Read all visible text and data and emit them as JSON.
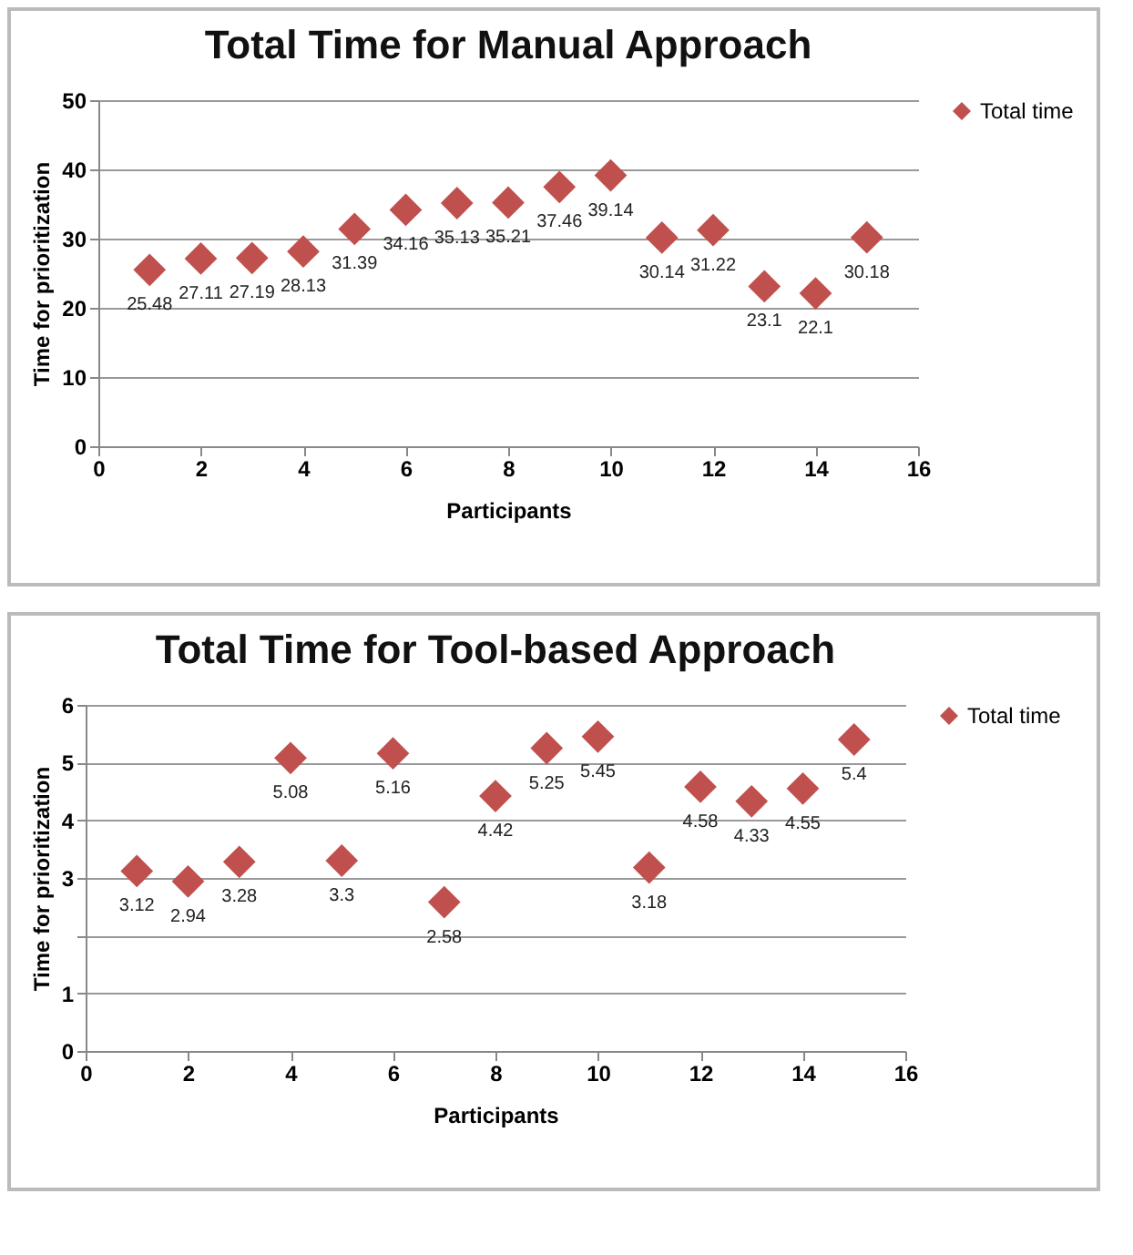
{
  "chart_data": [
    {
      "type": "scatter",
      "title": "Total Time for Manual Approach",
      "xlabel": "Participants",
      "ylabel": "Time for prioritization",
      "x": [
        1,
        2,
        3,
        4,
        5,
        6,
        7,
        8,
        9,
        10,
        11,
        12,
        13,
        14,
        15
      ],
      "series": [
        {
          "name": "Total time",
          "color": "#c0504d",
          "values": [
            25.48,
            27.11,
            27.19,
            28.13,
            31.39,
            34.16,
            35.13,
            35.21,
            37.46,
            39.14,
            30.14,
            31.22,
            23.1,
            22.1,
            30.18
          ]
        }
      ],
      "xlim": [
        0,
        16
      ],
      "xticks": [
        0,
        2,
        4,
        6,
        8,
        10,
        12,
        14,
        16
      ],
      "ylim": [
        0,
        50
      ],
      "yticks": [
        0,
        10,
        20,
        30,
        40,
        50
      ],
      "grid": "y",
      "legend": "right",
      "marker": "diamond",
      "data_labels": true
    },
    {
      "type": "scatter",
      "title": "Total Time for Tool-based Approach",
      "xlabel": "Participants",
      "ylabel": "Time for prioritization",
      "x": [
        1,
        2,
        3,
        4,
        5,
        6,
        7,
        8,
        9,
        10,
        11,
        12,
        13,
        14,
        15
      ],
      "series": [
        {
          "name": "Total time",
          "color": "#c0504d",
          "values": [
            3.12,
            2.94,
            3.28,
            5.08,
            3.3,
            5.16,
            2.58,
            4.42,
            5.25,
            5.45,
            3.18,
            4.58,
            4.33,
            4.55,
            5.4
          ]
        }
      ],
      "xlim": [
        0,
        16
      ],
      "xticks": [
        0,
        2,
        4,
        6,
        8,
        10,
        12,
        14,
        16
      ],
      "ylim": [
        0,
        6
      ],
      "yticks": [
        0,
        1,
        {
          "value": 2,
          "label": null
        },
        3,
        4,
        5,
        6
      ],
      "grid": "y",
      "legend": "right",
      "marker": "diamond",
      "data_labels": true
    }
  ]
}
